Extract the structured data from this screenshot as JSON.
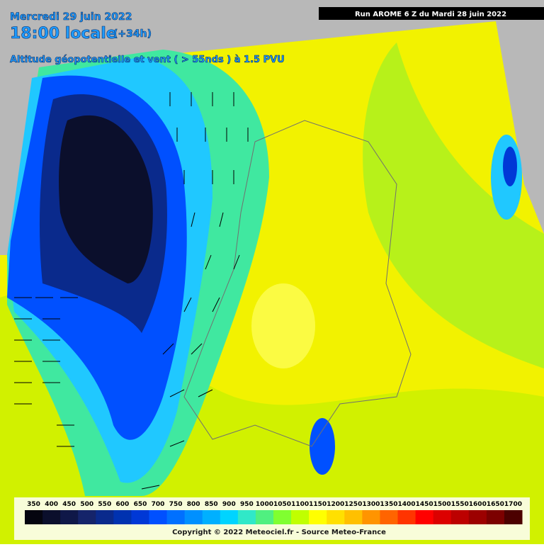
{
  "header": {
    "date": "Mercredi 29 juin 2022",
    "time": "18:00 locale",
    "lead": "(+34h)",
    "field": "Altitude géopotentielle et vent ( > 55nds ) à 1.5 PVU",
    "run": "Run AROME 6 Z du Mardi 28 juin 2022"
  },
  "colorbar": {
    "levels": [
      350,
      400,
      450,
      500,
      550,
      600,
      650,
      700,
      750,
      800,
      850,
      900,
      950,
      1000,
      1050,
      1100,
      1150,
      1200,
      1250,
      1300,
      1350,
      1400,
      1450,
      1500,
      1550,
      1600,
      1650,
      1700
    ],
    "colors": [
      "#05050f",
      "#0b0f2c",
      "#0f1848",
      "#15246a",
      "#0a2a8c",
      "#0032b0",
      "#0038d6",
      "#0050ff",
      "#0070ff",
      "#0090ff",
      "#00b0ff",
      "#00d4ff",
      "#30e8c8",
      "#50f080",
      "#80ff30",
      "#c0ff00",
      "#ffff00",
      "#ffe000",
      "#ffc000",
      "#ff9400",
      "#ff6400",
      "#ff3400",
      "#ff0000",
      "#dc0000",
      "#bc0000",
      "#9c0000",
      "#7c0000",
      "#4c0000"
    ]
  },
  "footer": {
    "copyright": "Copyright © 2022 Meteociel.fr - Source Meteo-France"
  }
}
